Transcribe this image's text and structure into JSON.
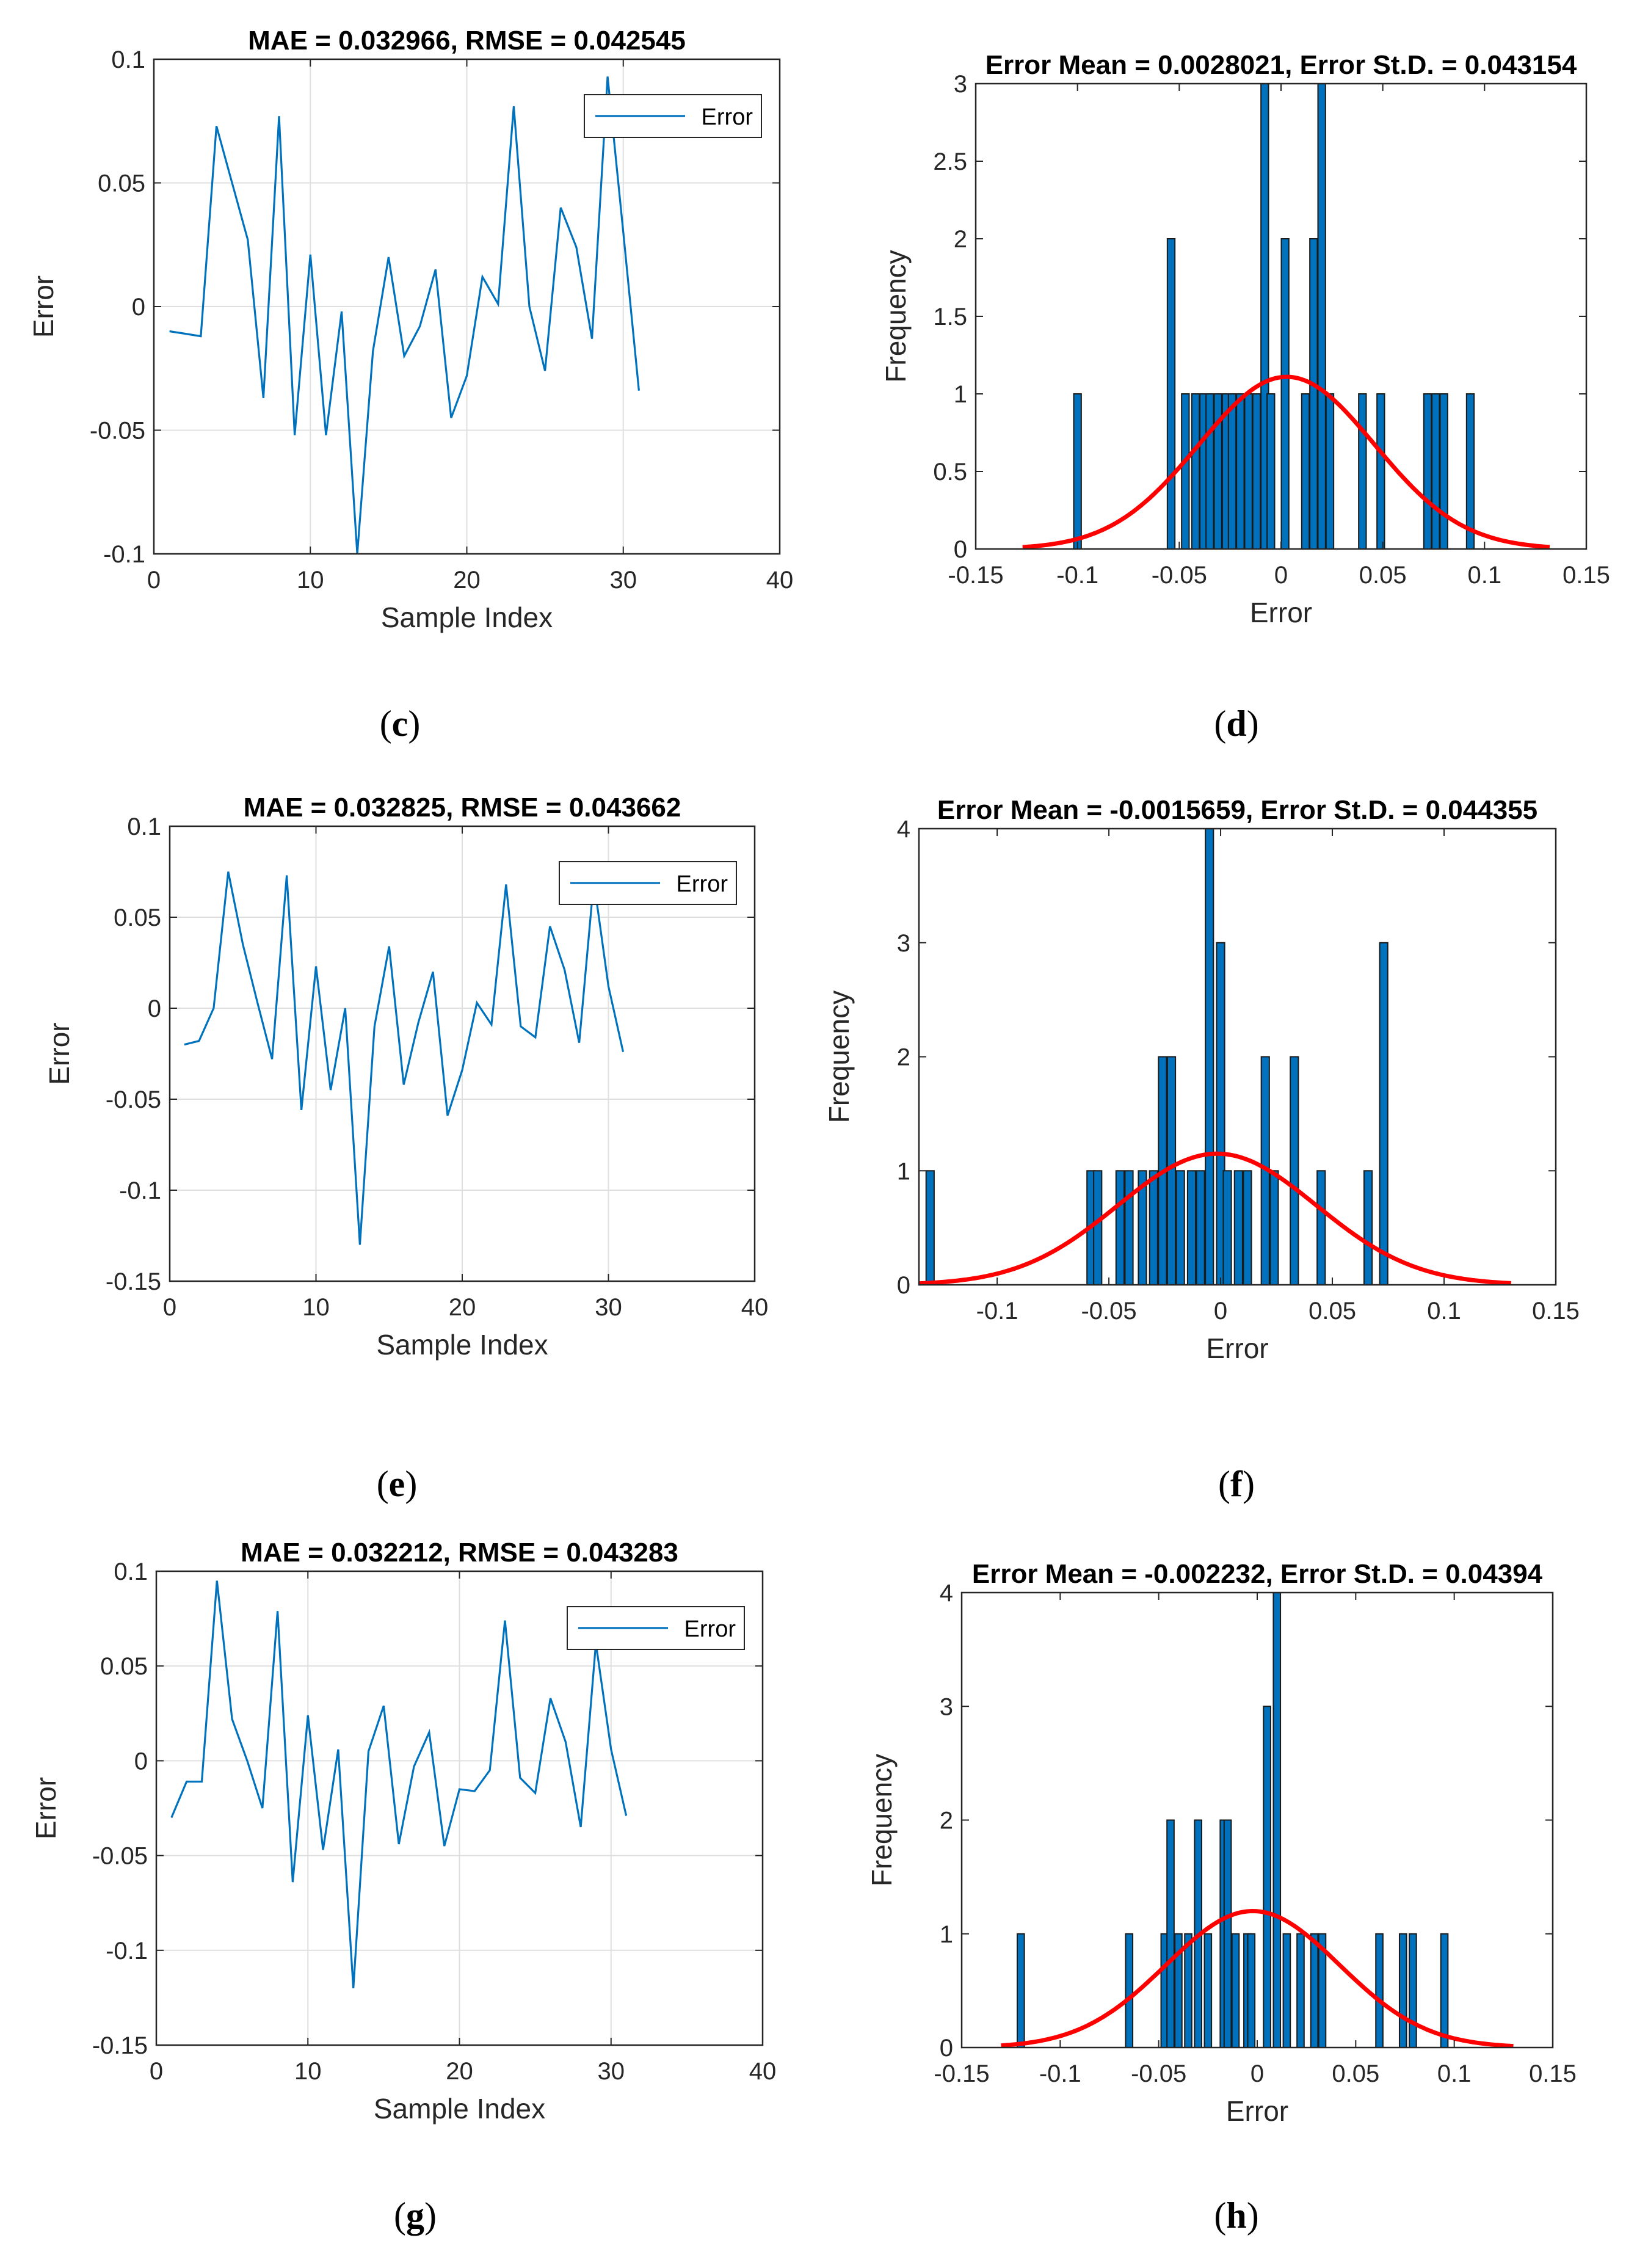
{
  "chart_data": [
    {
      "id": "c",
      "type": "line",
      "caption": "c",
      "title": "MAE = 0.032966, RMSE = 0.042545",
      "xlabel": "Sample Index",
      "ylabel": "Error",
      "xlim": [
        0,
        40
      ],
      "ylim": [
        -0.1,
        0.1
      ],
      "xticks": [
        0,
        10,
        20,
        30,
        40
      ],
      "xtick_labels": [
        "0",
        "10",
        "20",
        "30",
        "40"
      ],
      "yticks": [
        0.1,
        0.05,
        0,
        -0.05,
        -0.1
      ],
      "ytick_labels": [
        "0.1",
        "0.05",
        "0",
        "-0.05",
        "-0.1"
      ],
      "grid": true,
      "legend": "Error",
      "legend_position": "top-right",
      "color": "#0072bd",
      "x": [
        1,
        2,
        3,
        4,
        5,
        6,
        7,
        8,
        9,
        10,
        11,
        12,
        13,
        14,
        15,
        16,
        17,
        18,
        19,
        20,
        21,
        22,
        23,
        24,
        25,
        26,
        27,
        28,
        29,
        30,
        31
      ],
      "values": [
        -0.01,
        -0.011,
        -0.012,
        0.073,
        0.05,
        0.027,
        -0.037,
        0.077,
        -0.052,
        0.021,
        -0.052,
        -0.002,
        -0.1,
        -0.018,
        0.02,
        -0.02,
        -0.008,
        0.015,
        -0.045,
        -0.028,
        0.012,
        0.001,
        0.081,
        0.0,
        -0.026,
        0.04,
        0.024,
        -0.013,
        0.093,
        0.03,
        -0.034
      ]
    },
    {
      "id": "d",
      "type": "bar",
      "caption": "d",
      "title": "Error Mean = 0.0028021, Error St.D. = 0.043154",
      "xlabel": "Error",
      "ylabel": "Frequency",
      "xlim": [
        -0.15,
        0.15
      ],
      "ylim": [
        0,
        3
      ],
      "xticks": [
        -0.15,
        -0.1,
        -0.05,
        0,
        0.05,
        0.1,
        0.15
      ],
      "xtick_labels": [
        "-0.15",
        "-0.1",
        "-0.05",
        "0",
        "0.05",
        "0.1",
        "0.15"
      ],
      "yticks": [
        3,
        2.5,
        2,
        1.5,
        1,
        0.5,
        0
      ],
      "ytick_labels": [
        "3",
        "2.5",
        "2",
        "1.5",
        "1",
        "0.5",
        "0"
      ],
      "bar_width": 0.0037,
      "bar_color": "#0072bd",
      "bins": [
        -0.1,
        -0.054,
        -0.047,
        -0.042,
        -0.038,
        -0.035,
        -0.031,
        -0.027,
        -0.024,
        -0.02,
        -0.016,
        -0.012,
        -0.008,
        -0.005,
        0.002,
        0.012,
        0.016,
        0.02,
        0.024,
        0.04,
        0.049,
        0.072,
        0.076,
        0.08,
        0.093
      ],
      "values": [
        1,
        2,
        1,
        1,
        1,
        1,
        1,
        1,
        1,
        1,
        1,
        1,
        3,
        1,
        2,
        1,
        2,
        3,
        1,
        1,
        1,
        1,
        1,
        1,
        1
      ],
      "fit": {
        "name": "normal-fit",
        "color": "#ff0000",
        "mean": 0.0028021,
        "std": 0.043154,
        "peak": 1.11,
        "range": [
          -0.127,
          0.132
        ]
      }
    },
    {
      "id": "e",
      "type": "line",
      "caption": "e",
      "title": "MAE = 0.032825, RMSE = 0.043662",
      "xlabel": "Sample Index",
      "ylabel": "Error",
      "xlim": [
        0,
        40
      ],
      "ylim": [
        -0.15,
        0.1
      ],
      "xticks": [
        0,
        10,
        20,
        30,
        40
      ],
      "xtick_labels": [
        "0",
        "10",
        "20",
        "30",
        "40"
      ],
      "yticks": [
        0.1,
        0.05,
        0,
        -0.05,
        -0.1,
        -0.15
      ],
      "ytick_labels": [
        "0.1",
        "0.05",
        "0",
        "-0.05",
        "-0.1",
        "-0.15"
      ],
      "grid": true,
      "legend": "Error",
      "legend_position": "top-right",
      "color": "#0072bd",
      "x": [
        1,
        2,
        3,
        4,
        5,
        6,
        7,
        8,
        9,
        10,
        11,
        12,
        13,
        14,
        15,
        16,
        17,
        18,
        19,
        20,
        21,
        22,
        23,
        24,
        25,
        26,
        27,
        28,
        29,
        30,
        31
      ],
      "values": [
        -0.02,
        -0.018,
        0.0,
        0.075,
        0.035,
        0.003,
        -0.028,
        0.073,
        -0.056,
        0.023,
        -0.045,
        0.0,
        -0.13,
        -0.01,
        0.034,
        -0.042,
        -0.008,
        0.02,
        -0.059,
        -0.034,
        0.003,
        -0.009,
        0.068,
        -0.01,
        -0.016,
        0.045,
        0.021,
        -0.019,
        0.07,
        0.012,
        -0.024
      ]
    },
    {
      "id": "f",
      "type": "bar",
      "caption": "f",
      "title": "Error Mean = -0.0015659, Error St.D. = 0.044355",
      "xlabel": "Error",
      "ylabel": "Frequency",
      "xlim": [
        -0.135,
        0.15
      ],
      "ylim": [
        0,
        4
      ],
      "xticks": [
        -0.1,
        -0.05,
        0,
        0.05,
        0.1,
        0.15
      ],
      "xtick_labels": [
        "-0.1",
        "-0.05",
        "0",
        "0.05",
        "0.1",
        "0.15"
      ],
      "yticks": [
        4,
        3,
        2,
        1,
        0
      ],
      "ytick_labels": [
        "4",
        "3",
        "2",
        "1",
        "0"
      ],
      "bar_width": 0.0036,
      "bar_color": "#0072bd",
      "bins": [
        -0.13,
        -0.058,
        -0.055,
        -0.045,
        -0.041,
        -0.035,
        -0.03,
        -0.026,
        -0.022,
        -0.018,
        -0.013,
        -0.009,
        -0.005,
        0.0,
        0.003,
        0.008,
        0.012,
        0.02,
        0.024,
        0.033,
        0.045,
        0.066,
        0.073
      ],
      "values": [
        1,
        1,
        1,
        1,
        1,
        1,
        1,
        2,
        2,
        1,
        1,
        1,
        4,
        3,
        1,
        1,
        1,
        2,
        1,
        2,
        1,
        1,
        3
      ],
      "fit": {
        "name": "normal-fit",
        "color": "#ff0000",
        "mean": -0.0015659,
        "std": 0.044355,
        "peak": 1.15,
        "range": [
          -0.135,
          0.13
        ]
      }
    },
    {
      "id": "g",
      "type": "line",
      "caption": "g",
      "title": "MAE = 0.032212, RMSE = 0.043283",
      "xlabel": "Sample Index",
      "ylabel": "Error",
      "xlim": [
        0,
        40
      ],
      "ylim": [
        -0.15,
        0.1
      ],
      "xticks": [
        0,
        10,
        20,
        30,
        40
      ],
      "xtick_labels": [
        "0",
        "10",
        "20",
        "30",
        "40"
      ],
      "yticks": [
        0.1,
        0.05,
        0,
        -0.05,
        -0.1,
        -0.15
      ],
      "ytick_labels": [
        "0.1",
        "0.05",
        "0",
        "-0.05",
        "-0.1",
        "-0.15"
      ],
      "grid": true,
      "legend": "Error",
      "legend_position": "top-right",
      "color": "#0072bd",
      "x": [
        1,
        2,
        3,
        4,
        5,
        6,
        7,
        8,
        9,
        10,
        11,
        12,
        13,
        14,
        15,
        16,
        17,
        18,
        19,
        20,
        21,
        22,
        23,
        24,
        25,
        26,
        27,
        28,
        29,
        30,
        31
      ],
      "values": [
        -0.03,
        -0.011,
        -0.011,
        0.095,
        0.022,
        0.0,
        -0.025,
        0.079,
        -0.064,
        0.024,
        -0.047,
        0.006,
        -0.12,
        0.005,
        0.029,
        -0.044,
        -0.003,
        0.015,
        -0.045,
        -0.015,
        -0.016,
        -0.005,
        0.074,
        -0.009,
        -0.017,
        0.033,
        0.01,
        -0.035,
        0.062,
        0.006,
        -0.029
      ]
    },
    {
      "id": "h",
      "type": "bar",
      "caption": "h",
      "title": "Error Mean = -0.002232, Error St.D. = 0.04394",
      "xlabel": "Error",
      "ylabel": "Frequency",
      "xlim": [
        -0.15,
        0.15
      ],
      "ylim": [
        0,
        4
      ],
      "xticks": [
        -0.15,
        -0.1,
        -0.05,
        0,
        0.05,
        0.1,
        0.15
      ],
      "xtick_labels": [
        "-0.15",
        "-0.1",
        "-0.05",
        "0",
        "0.05",
        "0.1",
        "0.15"
      ],
      "yticks": [
        4,
        3,
        2,
        1,
        0
      ],
      "ytick_labels": [
        "4",
        "3",
        "2",
        "1",
        "0"
      ],
      "bar_width": 0.0036,
      "bar_color": "#0072bd",
      "bins": [
        -0.12,
        -0.065,
        -0.047,
        -0.044,
        -0.04,
        -0.035,
        -0.03,
        -0.025,
        -0.017,
        -0.015,
        -0.011,
        -0.005,
        -0.003,
        0.005,
        0.01,
        0.015,
        0.022,
        0.029,
        0.033,
        0.062,
        0.074,
        0.079,
        0.095
      ],
      "values": [
        1,
        1,
        1,
        2,
        1,
        1,
        2,
        1,
        2,
        2,
        1,
        1,
        1,
        3,
        4,
        1,
        1,
        1,
        1,
        1,
        1,
        1,
        1
      ],
      "fit": {
        "name": "normal-fit",
        "color": "#ff0000",
        "mean": -0.002232,
        "std": 0.04394,
        "peak": 1.2,
        "range": [
          -0.13,
          0.13
        ]
      }
    }
  ]
}
